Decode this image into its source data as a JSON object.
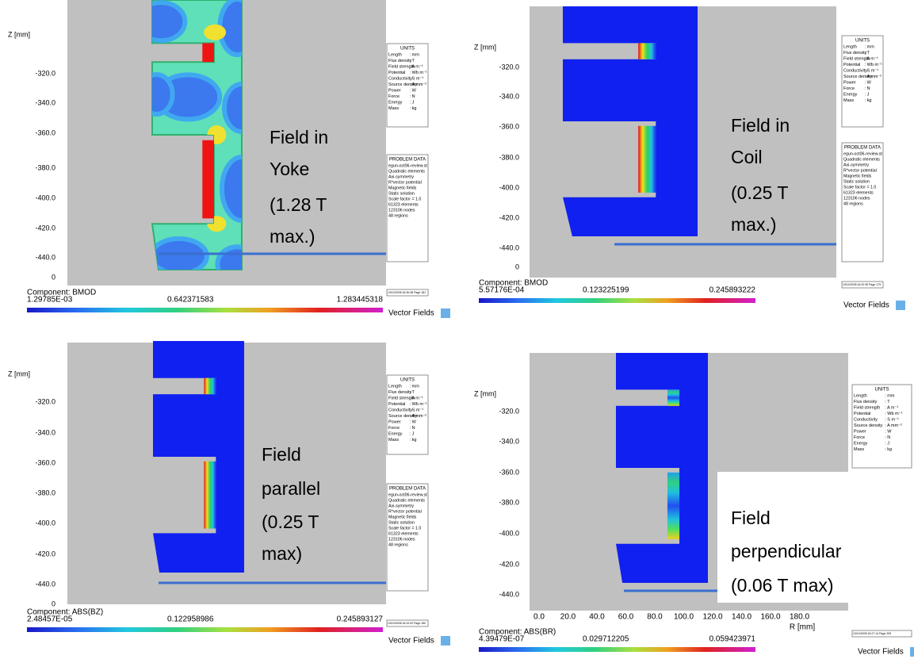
{
  "units": {
    "title": "UNITS",
    "rows": [
      [
        "Length",
        ": mm"
      ],
      [
        "Flux density",
        ": T"
      ],
      [
        "Field strength",
        ": A m⁻¹"
      ],
      [
        "Potential",
        ": Wb m⁻¹"
      ],
      [
        "Conductivity",
        ": S m⁻¹"
      ],
      [
        "Source density",
        ": A mm⁻²"
      ],
      [
        "Power",
        ": W"
      ],
      [
        "Force",
        ": N"
      ],
      [
        "Energy",
        ": J"
      ],
      [
        "Mass",
        ": kg"
      ]
    ]
  },
  "problem_data": {
    "title": "PROBLEM DATA",
    "lines": [
      "egun-oct06-review.st",
      "Quadratic elements",
      "Axi-symmetry",
      "R*vector potential",
      "Magnetic fields",
      "Static solution",
      "Scale factor = 1.0",
      "61323 elements",
      "123106 nodes",
      "48 regions"
    ]
  },
  "logo": "Vector Fields",
  "panels": [
    {
      "z_label": "Z [mm]",
      "z_ticks": [
        "-320.0",
        "-340.0",
        "-360.0",
        "-380.0",
        "-400.0",
        "-420.0",
        "-440.0",
        "0"
      ],
      "component": "Component: BMOD",
      "scale": [
        "1.29785E-03",
        "0.642371583",
        "1.283445318"
      ],
      "annotation": [
        "Field in",
        "Yoke",
        "(1.28 T",
        "max.)"
      ],
      "footer": "13/10/2008 16:30:48 Page 181"
    },
    {
      "z_label": "Z [mm]",
      "z_ticks": [
        "-320.0",
        "-340.0",
        "-360.0",
        "-380.0",
        "-400.0",
        "-420.0",
        "-440.0",
        "0"
      ],
      "component": "Component: BMOD",
      "scale": [
        "5.57176E-04",
        "0.123225199",
        "0.245893222"
      ],
      "annotation": [
        "Field in",
        "Coil",
        "(0.25 T",
        "max.)"
      ],
      "footer": "13/10/2008 16:20:35 Page 179"
    },
    {
      "z_label": "Z [mm]",
      "z_ticks": [
        "-320.0",
        "-340.0",
        "-360.0",
        "-380.0",
        "-400.0",
        "-420.0",
        "-440.0",
        "0"
      ],
      "component": "Component: ABS(BZ)",
      "scale": [
        "2.48457E-05",
        "0.122958986",
        "0.245893127"
      ],
      "annotation": [
        "Field",
        "parallel",
        "(0.25 T",
        "max)"
      ],
      "footer": "13/10/2008 16:22:02 Page 180"
    },
    {
      "z_label": "Z [mm]",
      "z_ticks": [
        "-320.0",
        "-340.0",
        "-360.0",
        "-380.0",
        "-400.0",
        "-420.0",
        "-440.0"
      ],
      "r_ticks": [
        "0.0",
        "20.0",
        "40.0",
        "60.0",
        "80.0",
        "100.0",
        "120.0",
        "140.0",
        "160.0",
        "180.0"
      ],
      "r_label": "R [mm]",
      "component": "Component: ABS(BR)",
      "scale": [
        "4.39479E-07",
        "0.029712205",
        "0.059423971"
      ],
      "annotation": [
        "Field",
        "perpendicular",
        "(0.06 T max)"
      ],
      "footer": "13/10/2008 16:27:14 Page 205"
    }
  ]
}
